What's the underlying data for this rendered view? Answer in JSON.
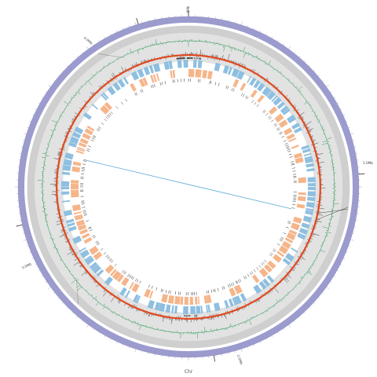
{
  "figure": {
    "chromosome_label": "Chr",
    "size_labels": [
      "0Mb",
      "1.0Mb",
      "2.0Mb",
      "3.0Mb",
      "4.0Mb"
    ]
  },
  "colors": {
    "ideogram": "#9b9bce",
    "ticks": "#8888bb",
    "gray_band": "#cfcfcf",
    "gray_inner": "#e2e2e2",
    "gc_skew": "#2e9a57",
    "gc_content": "#e0481e",
    "forward_cds": "#8ebfe0",
    "reverse_cds": "#f5b58a",
    "rna_marks": "#333333",
    "link": "#5aaad6",
    "accent_line": "#222222"
  },
  "chart_data": {
    "type": "circular-genome",
    "tracks": [
      "ideogram",
      "gc-skew",
      "gc-content",
      "cds-forward",
      "cds-reverse",
      "rna",
      "links"
    ],
    "genome_size_mb": 4.2,
    "label_positions_mb": [
      0,
      1.0,
      2.0,
      3.0,
      4.0
    ],
    "links": [
      {
        "from_mb": 1.19,
        "to_mb": 3.32
      }
    ]
  }
}
